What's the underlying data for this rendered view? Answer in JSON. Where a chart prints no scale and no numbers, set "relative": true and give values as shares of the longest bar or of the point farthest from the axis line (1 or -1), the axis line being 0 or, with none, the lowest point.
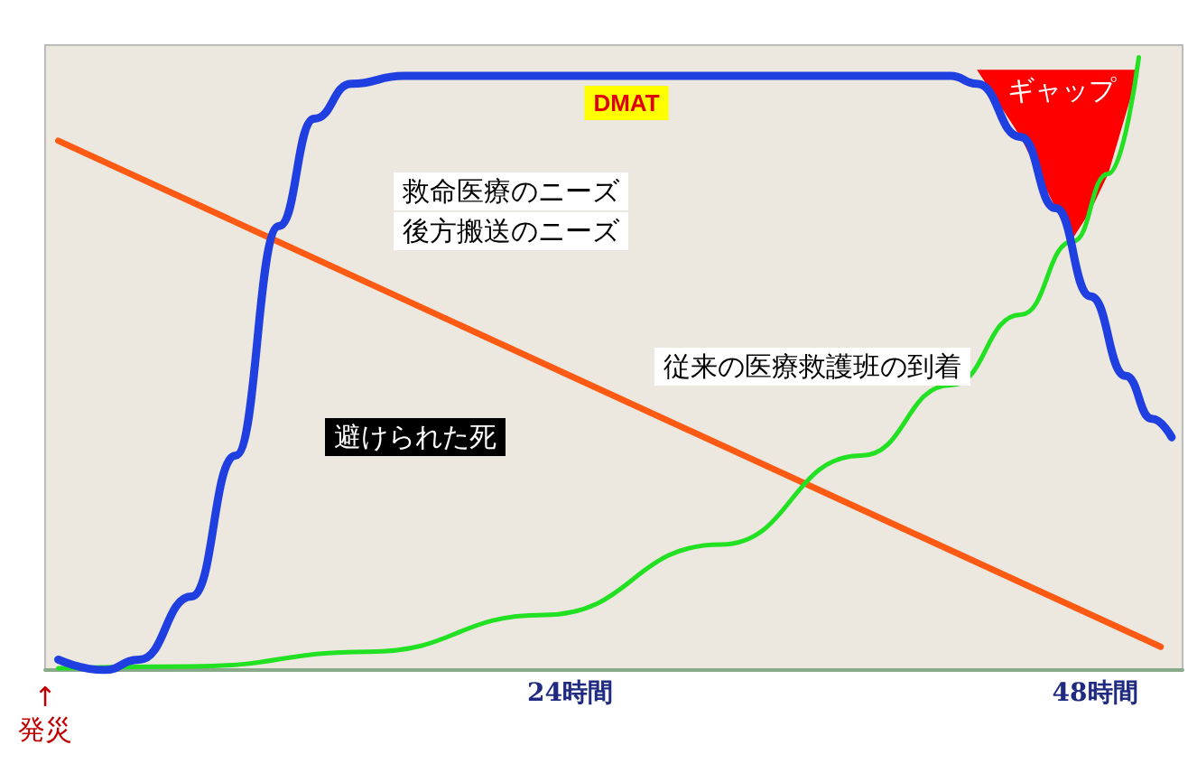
{
  "chart_data": {
    "type": "line",
    "relative": true,
    "grid": false,
    "marker": "none",
    "line_style": "solid",
    "xlim": [
      0,
      52
    ],
    "xticks": [
      {
        "value": 0,
        "label": "↑\n発災"
      },
      {
        "value": 24,
        "label": "24時間"
      },
      {
        "value": 48,
        "label": "48時間"
      }
    ],
    "series": [
      {
        "color": "#ff0000",
        "type": "area",
        "x": [
          42.6,
          50,
          48.6,
          47.8,
          46.9,
          46.2,
          44.6
        ],
        "values": [
          0.98,
          0.98,
          0.81,
          0.75,
          0.7,
          0.754,
          0.87
        ]
      },
      {
        "color": "#ff5a14",
        "x": [
          0.6,
          51
        ],
        "values": [
          0.864,
          0.038
        ]
      },
      {
        "color": "#22e022",
        "x": [
          0.6,
          6.7,
          14.8,
          22.8,
          30.9,
          37.3,
          41.4,
          44.6,
          47,
          48.6,
          50
        ],
        "values": [
          0.003,
          0.006,
          0.03,
          0.09,
          0.205,
          0.35,
          0.465,
          0.58,
          0.7,
          0.81,
          1
        ]
      },
      {
        "color": "#1f3fe0",
        "x": [
          0.6,
          2.7,
          4.3,
          6.7,
          8.7,
          10.7,
          12.3,
          14,
          16.4,
          41.4,
          42.6,
          44.6,
          46.2,
          47.8,
          49.4,
          50.6,
          51.5
        ],
        "values": [
          0.017,
          0,
          0.017,
          0.12,
          0.35,
          0.725,
          0.9,
          0.957,
          0.97,
          0.97,
          0.957,
          0.87,
          0.754,
          0.61,
          0.48,
          0.41,
          0.38
        ]
      }
    ],
    "annotations": [
      "DMAT",
      "救命医療のニーズ",
      "後方搬送のニーズ",
      "従来の医療救護班の到着",
      "避けられた死",
      "ギャップ"
    ]
  }
}
